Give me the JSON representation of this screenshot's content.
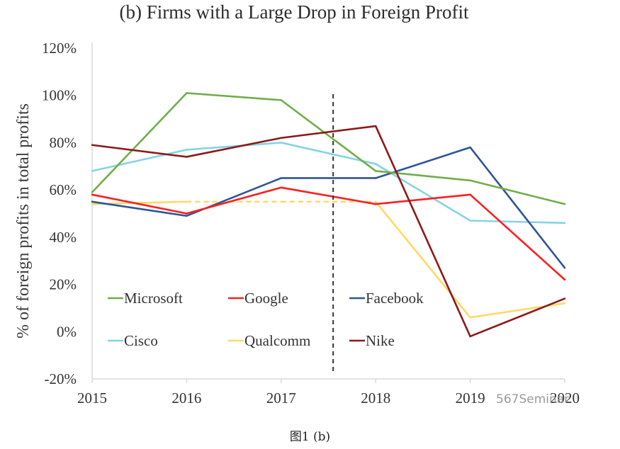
{
  "chart_data": {
    "type": "line",
    "title": "(b) Firms with a Large Drop in Foreign Profit",
    "xlabel": "",
    "ylabel": "% of foreign profits in total profits",
    "x": [
      "2015",
      "2016",
      "2017",
      "2018",
      "2019",
      "2020"
    ],
    "ylim": [
      -20,
      120
    ],
    "yticks": [
      -20,
      0,
      20,
      40,
      60,
      80,
      100,
      120
    ],
    "ytick_labels": [
      "-20%",
      "0%",
      "20%",
      "40%",
      "60%",
      "80%",
      "100%",
      "120%"
    ],
    "grid": false,
    "legend_position": "lower-left (inside plot, 2 rows x 3 columns)",
    "annotations": [
      {
        "type": "vertical-dashed-line",
        "x": 2017.55,
        "color": "#333333"
      }
    ],
    "series": [
      {
        "name": "Microsoft",
        "color": "#70AD47",
        "values": [
          59,
          101,
          98,
          68,
          64,
          54
        ]
      },
      {
        "name": "Google",
        "color": "#FF1F1F",
        "values": [
          58,
          50,
          61,
          54,
          58,
          22
        ]
      },
      {
        "name": "Facebook",
        "color": "#2F5597",
        "values": [
          55,
          49,
          65,
          65,
          78,
          27
        ]
      },
      {
        "name": "Cisco",
        "color": "#85D3E6",
        "values": [
          68,
          77,
          80,
          71,
          47,
          46
        ]
      },
      {
        "name": "Qualcomm",
        "color": "#FFD966",
        "values": [
          54,
          55,
          55,
          55,
          6,
          12
        ],
        "dashed_segments": [
          [
            1,
            3
          ]
        ]
      },
      {
        "name": "Nike",
        "color": "#8B1A1A",
        "values": [
          79,
          74,
          82,
          87,
          -2,
          14
        ]
      }
    ]
  },
  "legend": {
    "items": [
      "Microsoft",
      "Google",
      "Facebook",
      "Cisco",
      "Qualcomm",
      "Nike"
    ]
  },
  "watermark": "567Seminar",
  "caption": "图1 (b)"
}
